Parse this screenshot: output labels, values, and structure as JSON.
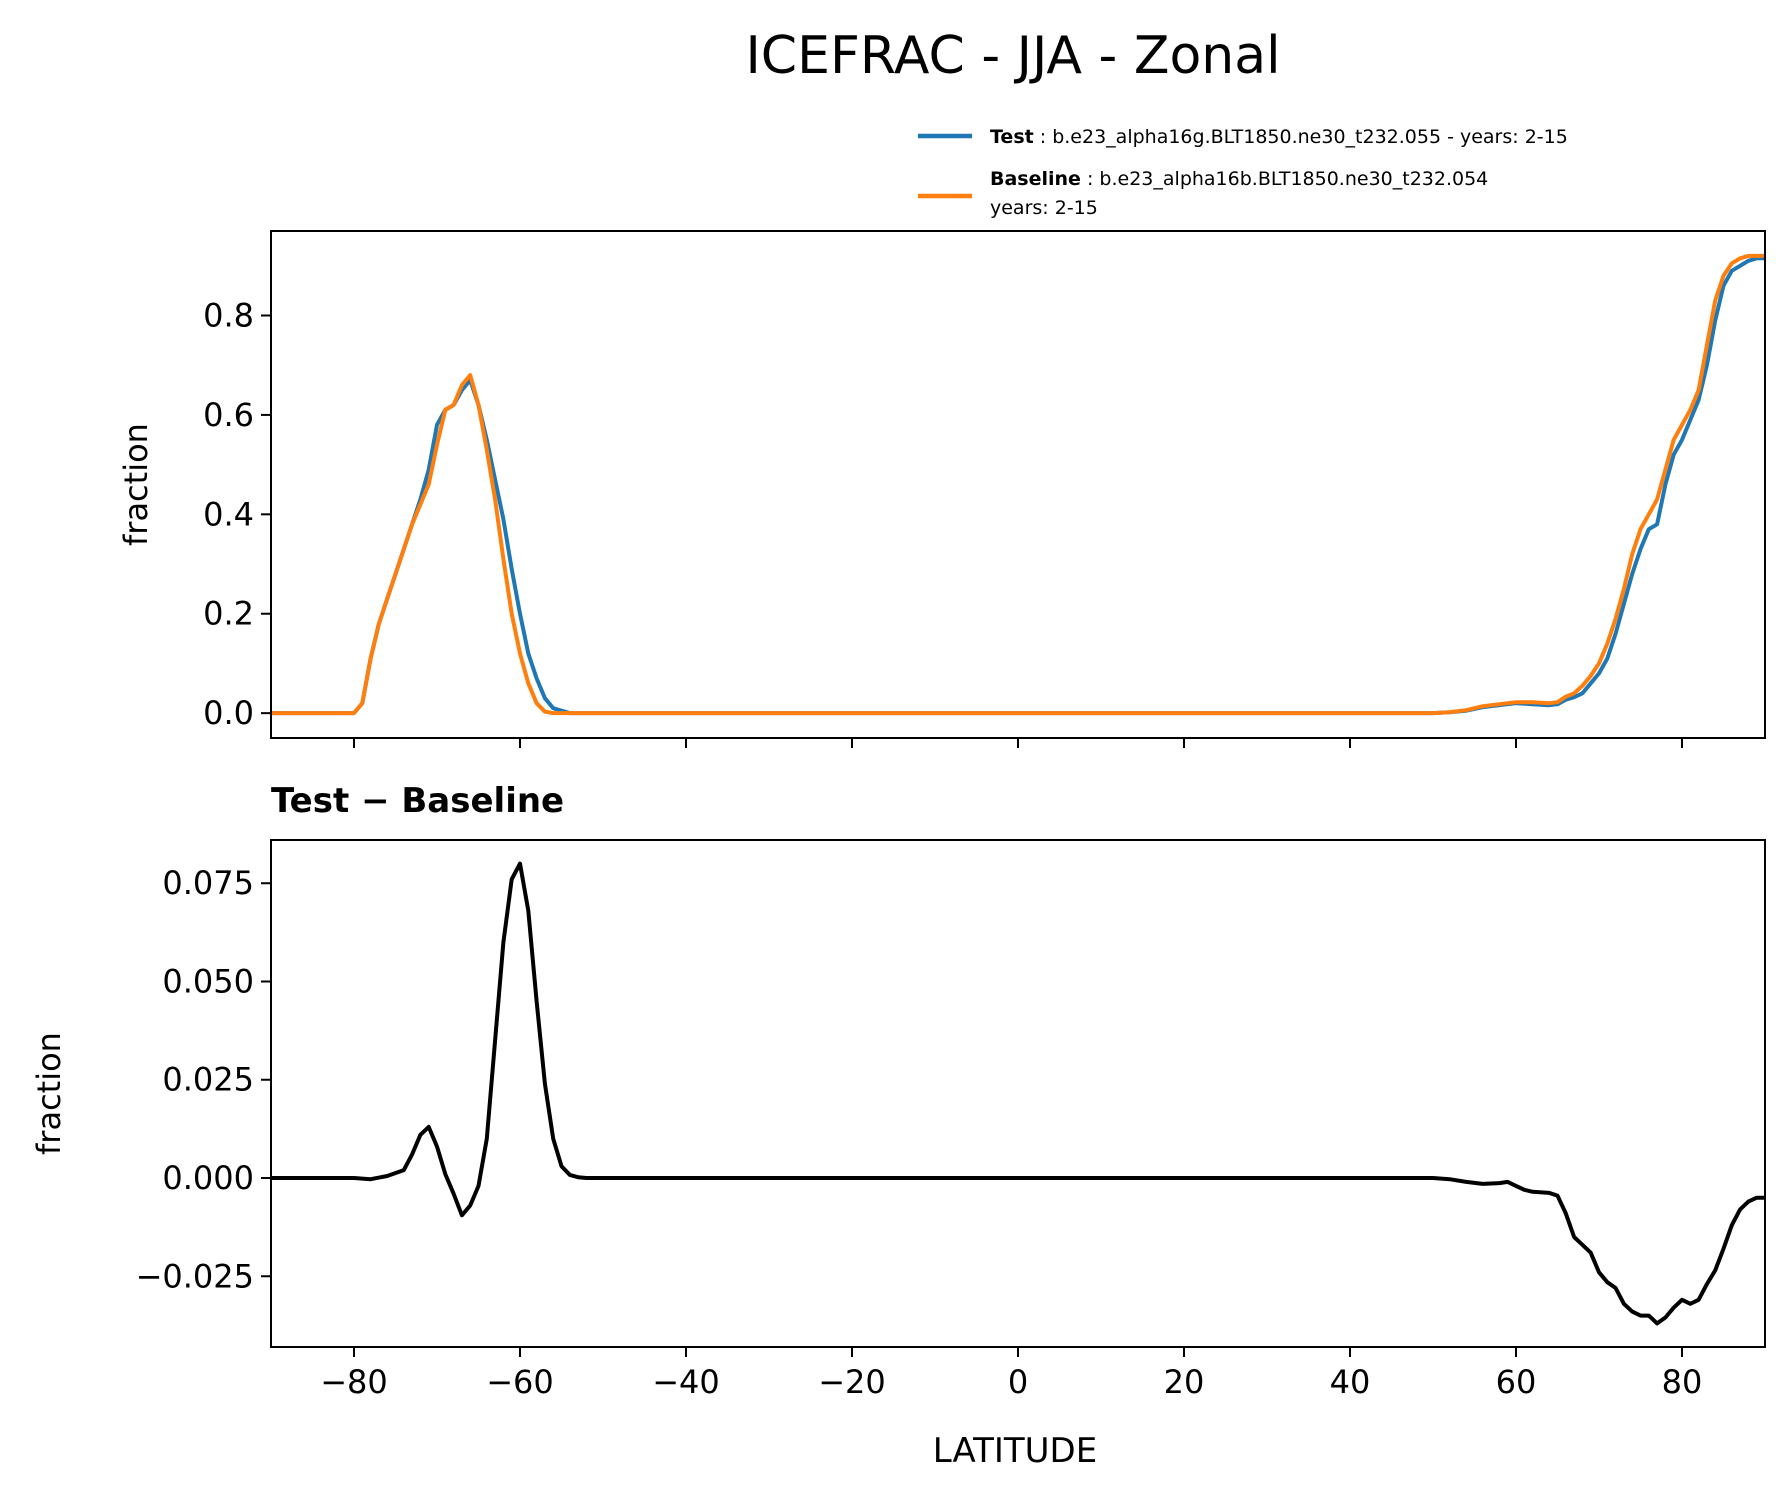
{
  "title": "ICEFRAC - JJA - Zonal",
  "legend": [
    {
      "name_bold": "Test",
      "desc_lines": [
        ": b.e23_alpha16g.BLT1850.ne30_t232.055 - years: 2-15"
      ],
      "color": "#1f77b4"
    },
    {
      "name_bold": "Baseline",
      "desc_lines": [
        ": b.e23_alpha16b.BLT1850.ne30_t232.054",
        "years: 2-15"
      ],
      "color": "#ff7f0e"
    }
  ],
  "chart_data": [
    {
      "type": "line",
      "ylabel": "fraction",
      "xlim": [
        -90,
        90
      ],
      "ylim": [
        -0.05,
        0.97
      ],
      "yticks": [
        0.0,
        0.2,
        0.4,
        0.6,
        0.8
      ],
      "ytick_labels": [
        "0.0",
        "0.2",
        "0.4",
        "0.6",
        "0.8"
      ],
      "xticks": [
        -80,
        -60,
        -40,
        -20,
        0,
        20,
        40,
        60,
        80
      ],
      "show_xtick_labels": false,
      "grid": false,
      "legend_placement": "above-right",
      "series": [
        {
          "name": "Test",
          "color": "#1f77b4",
          "x": [
            -90,
            -85,
            -80,
            -79,
            -78,
            -77,
            -76,
            -75,
            -74,
            -73,
            -72,
            -71,
            -70,
            -69,
            -68,
            -67,
            -66,
            -65,
            -64,
            -63,
            -62,
            -61,
            -60,
            -59,
            -58,
            -57,
            -56,
            -55,
            -54,
            -52,
            -50,
            0,
            50,
            52,
            54,
            56,
            58,
            60,
            62,
            64,
            65,
            66,
            67,
            68,
            69,
            70,
            71,
            72,
            73,
            74,
            75,
            76,
            77,
            78,
            79,
            80,
            81,
            82,
            83,
            84,
            85,
            86,
            87,
            88,
            89,
            90
          ],
          "y": [
            0,
            0,
            0,
            0.02,
            0.11,
            0.18,
            0.23,
            0.28,
            0.33,
            0.38,
            0.43,
            0.49,
            0.58,
            0.61,
            0.62,
            0.65,
            0.67,
            0.62,
            0.55,
            0.47,
            0.39,
            0.29,
            0.2,
            0.12,
            0.07,
            0.03,
            0.01,
            0.005,
            0,
            0,
            0,
            0,
            0,
            0.002,
            0.005,
            0.012,
            0.016,
            0.02,
            0.018,
            0.016,
            0.018,
            0.027,
            0.032,
            0.04,
            0.06,
            0.08,
            0.11,
            0.16,
            0.22,
            0.28,
            0.33,
            0.37,
            0.38,
            0.46,
            0.52,
            0.55,
            0.59,
            0.63,
            0.7,
            0.79,
            0.86,
            0.89,
            0.9,
            0.91,
            0.915,
            0.915
          ]
        },
        {
          "name": "Baseline",
          "color": "#ff7f0e",
          "x": [
            -90,
            -85,
            -80,
            -79,
            -78,
            -77,
            -76,
            -75,
            -74,
            -73,
            -72,
            -71,
            -70,
            -69,
            -68,
            -67,
            -66,
            -65,
            -64,
            -63,
            -62,
            -61,
            -60,
            -59,
            -58,
            -57,
            -56,
            -55,
            -54,
            -52,
            -50,
            0,
            50,
            52,
            54,
            56,
            58,
            60,
            62,
            64,
            65,
            66,
            67,
            68,
            69,
            70,
            71,
            72,
            73,
            74,
            75,
            76,
            77,
            78,
            79,
            80,
            81,
            82,
            83,
            84,
            85,
            86,
            87,
            88,
            89,
            90
          ],
          "y": [
            0,
            0,
            0,
            0.02,
            0.11,
            0.18,
            0.23,
            0.28,
            0.33,
            0.38,
            0.42,
            0.46,
            0.54,
            0.61,
            0.62,
            0.66,
            0.68,
            0.62,
            0.53,
            0.43,
            0.31,
            0.2,
            0.12,
            0.06,
            0.02,
            0.003,
            0,
            0,
            0,
            0,
            0,
            0,
            0,
            0.002,
            0.006,
            0.014,
            0.018,
            0.022,
            0.022,
            0.02,
            0.022,
            0.033,
            0.04,
            0.055,
            0.075,
            0.1,
            0.14,
            0.19,
            0.25,
            0.32,
            0.37,
            0.4,
            0.43,
            0.49,
            0.55,
            0.58,
            0.61,
            0.65,
            0.74,
            0.83,
            0.88,
            0.905,
            0.915,
            0.92,
            0.92,
            0.92
          ]
        }
      ]
    },
    {
      "type": "line",
      "title": "Test − Baseline",
      "xlabel": "LATITUDE",
      "ylabel": "fraction",
      "xlim": [
        -90,
        90
      ],
      "ylim": [
        -0.043,
        0.086
      ],
      "yticks": [
        -0.025,
        0.0,
        0.025,
        0.05,
        0.075
      ],
      "ytick_labels": [
        "−0.025",
        "0.000",
        "0.025",
        "0.050",
        "0.075"
      ],
      "xticks": [
        -80,
        -60,
        -40,
        -20,
        0,
        20,
        40,
        60,
        80
      ],
      "xtick_labels": [
        "−80",
        "−60",
        "−40",
        "−20",
        "0",
        "20",
        "40",
        "60",
        "80"
      ],
      "grid": false,
      "series": [
        {
          "color": "#000000",
          "x": [
            -90,
            -80,
            -78,
            -76,
            -74,
            -73,
            -72,
            -71,
            -70,
            -69,
            -68,
            -67,
            -66,
            -65,
            -64,
            -63,
            -62,
            -61,
            -60,
            -59,
            -58,
            -57,
            -56,
            -55,
            -54,
            -53,
            -52,
            -50,
            0,
            50,
            52,
            54,
            56,
            58,
            59,
            60,
            61,
            62,
            64,
            65,
            66,
            67,
            68,
            69,
            70,
            71,
            72,
            73,
            74,
            75,
            76,
            77,
            78,
            79,
            80,
            81,
            82,
            83,
            84,
            85,
            86,
            87,
            88,
            89,
            90
          ],
          "y": [
            0,
            0,
            -0.0003,
            0.0005,
            0.002,
            0.006,
            0.011,
            0.013,
            0.008,
            0.001,
            -0.004,
            -0.0095,
            -0.007,
            -0.002,
            0.01,
            0.035,
            0.06,
            0.076,
            0.08,
            0.068,
            0.045,
            0.024,
            0.01,
            0.003,
            0.0008,
            0.0002,
            0,
            0,
            0,
            0,
            -0.0003,
            -0.001,
            -0.0015,
            -0.0013,
            -0.001,
            -0.002,
            -0.003,
            -0.0035,
            -0.0038,
            -0.0045,
            -0.009,
            -0.015,
            -0.017,
            -0.019,
            -0.024,
            -0.0265,
            -0.028,
            -0.032,
            -0.034,
            -0.035,
            -0.035,
            -0.037,
            -0.0355,
            -0.033,
            -0.031,
            -0.032,
            -0.031,
            -0.027,
            -0.0235,
            -0.018,
            -0.012,
            -0.008,
            -0.006,
            -0.005,
            -0.005
          ]
        }
      ]
    }
  ]
}
